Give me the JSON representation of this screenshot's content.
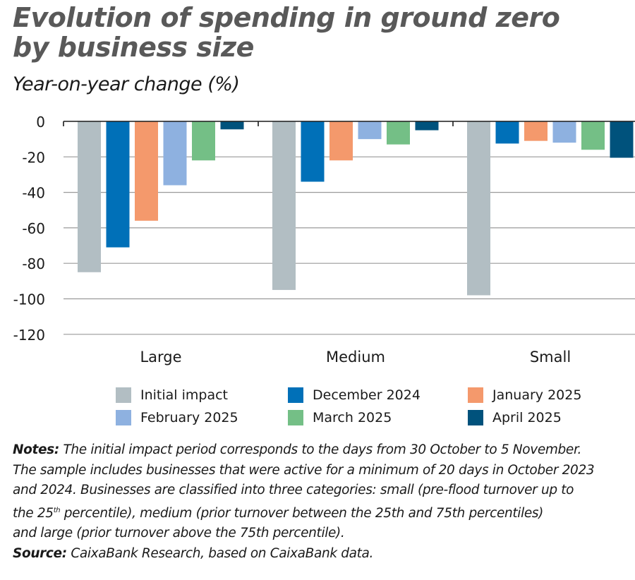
{
  "title_line1": "Evolution of spending in ground zero",
  "title_line2": "by business size",
  "subtitle": "Year-on-year change (%)",
  "notes": {
    "notes_label": "Notes:",
    "line1": "The initial impact period corresponds to the days from 30 October to 5 November.",
    "line2": "The sample includes businesses that were active for a minimum of 20 days in October 2023",
    "line3": "and 2024. Businesses are classified into three categories: small (pre-flood turnover up to",
    "line4a": "the 25",
    "line4sup": "th",
    "line4b": " percentile), medium (prior turnover between the 25th and 75th percentiles)",
    "line5": "and large (prior turnover above the 75th percentile).",
    "source_label": "Source:",
    "source_text": " CaixaBank Research, based on CaixaBank data."
  },
  "legend": [
    {
      "label": "Initial impact",
      "color": "#b2bec3"
    },
    {
      "label": "December 2024",
      "color": "#0070b8"
    },
    {
      "label": "January 2025",
      "color": "#f4996c"
    },
    {
      "label": "February 2025",
      "color": "#8eb1e0"
    },
    {
      "label": "March 2025",
      "color": "#74bf86"
    },
    {
      "label": "April 2025",
      "color": "#00527c"
    }
  ],
  "chart_data": {
    "type": "bar",
    "title": "Evolution of spending in ground zero by business size",
    "subtitle": "Year-on-year change (%)",
    "xlabel": "",
    "ylabel": "Year-on-year change (%)",
    "categories": [
      "Large",
      "Medium",
      "Small"
    ],
    "yticks": [
      0,
      -20,
      -40,
      -60,
      -80,
      -100,
      -120
    ],
    "ylim": [
      -120,
      0
    ],
    "grid": true,
    "legend_position": "bottom",
    "series": [
      {
        "name": "Initial impact",
        "color": "#b2bec3",
        "values": [
          -85,
          -95,
          -98
        ]
      },
      {
        "name": "December 2024",
        "color": "#0070b8",
        "values": [
          -71,
          -34,
          -12.5
        ]
      },
      {
        "name": "January 2025",
        "color": "#f4996c",
        "values": [
          -56,
          -22,
          -11
        ]
      },
      {
        "name": "February 2025",
        "color": "#8eb1e0",
        "values": [
          -36,
          -10,
          -12
        ]
      },
      {
        "name": "March 2025",
        "color": "#74bf86",
        "values": [
          -22,
          -13,
          -16
        ]
      },
      {
        "name": "April 2025",
        "color": "#00527c",
        "values": [
          -4.5,
          -5,
          -20.5
        ]
      }
    ]
  }
}
